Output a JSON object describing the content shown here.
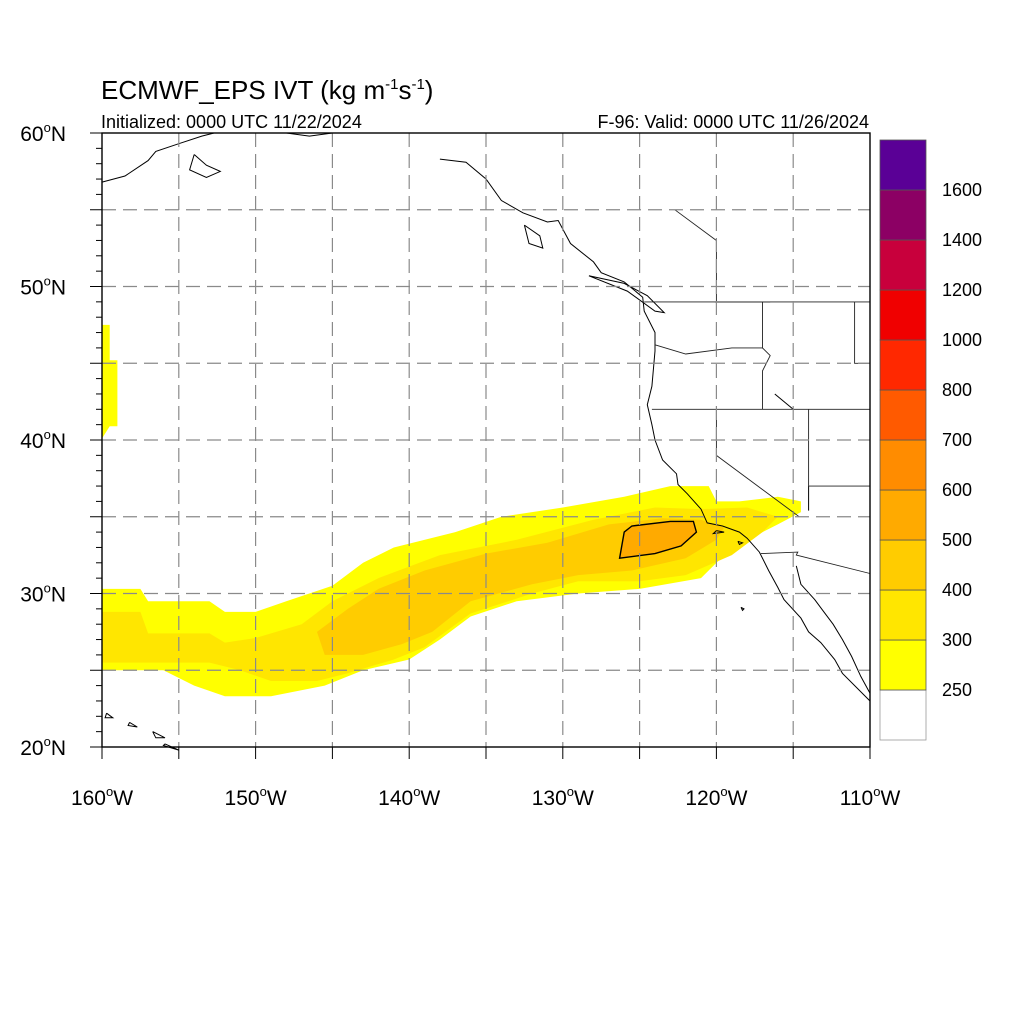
{
  "map": {
    "title_prefix": "ECMWF_EPS IVT (kg m",
    "title_sup1": "-1",
    "title_mid": "s",
    "title_sup2": "-1",
    "title_suffix": ")",
    "initialized": "Initialized: 0000 UTC 11/22/2024",
    "valid": "F-96: Valid: 0000 UTC 11/26/2024",
    "lon_range": [
      -160,
      -110
    ],
    "lat_range": [
      20,
      60
    ],
    "grid_dashed": true,
    "grid_lon_step": 5,
    "grid_lat_step": 5,
    "lat_ticks": [
      {
        "value": 60,
        "num": "60",
        "hemi": "N"
      },
      {
        "value": 50,
        "num": "50",
        "hemi": "N"
      },
      {
        "value": 40,
        "num": "40",
        "hemi": "N"
      },
      {
        "value": 30,
        "num": "30",
        "hemi": "N"
      },
      {
        "value": 20,
        "num": "20",
        "hemi": "N"
      }
    ],
    "lon_ticks": [
      {
        "value": -160,
        "num": "160",
        "hemi": "W"
      },
      {
        "value": -150,
        "num": "150",
        "hemi": "W"
      },
      {
        "value": -140,
        "num": "140",
        "hemi": "W"
      },
      {
        "value": -130,
        "num": "130",
        "hemi": "W"
      },
      {
        "value": -120,
        "num": "120",
        "hemi": "W"
      },
      {
        "value": -110,
        "num": "110",
        "hemi": "W"
      }
    ]
  },
  "colorbar": {
    "bins": [
      {
        "upper": null,
        "color": "#ffffff"
      },
      {
        "upper": 250,
        "color": "#ffff00"
      },
      {
        "upper": 300,
        "color": "#ffe600"
      },
      {
        "upper": 400,
        "color": "#ffcc00"
      },
      {
        "upper": 500,
        "color": "#ffaa00"
      },
      {
        "upper": 600,
        "color": "#ff8c00"
      },
      {
        "upper": 700,
        "color": "#ff5a00"
      },
      {
        "upper": 800,
        "color": "#ff2800"
      },
      {
        "upper": 1000,
        "color": "#f00000"
      },
      {
        "upper": 1200,
        "color": "#c8003c"
      },
      {
        "upper": 1400,
        "color": "#8c0064"
      },
      {
        "upper": 1600,
        "color": "#5a0096"
      }
    ],
    "labels": [
      "250",
      "300",
      "400",
      "500",
      "600",
      "700",
      "800",
      "1000",
      "1200",
      "1400",
      "1600"
    ]
  },
  "chart_data": {
    "type": "heatmap",
    "variable": "IVT",
    "units": "kg m-1 s-1",
    "filled_regions": [
      {
        "level_min": 250,
        "color": "#ffff00",
        "polygon_lonlat": [
          [
            -160,
            30.3
          ],
          [
            -157.5,
            30.3
          ],
          [
            -157,
            29.5
          ],
          [
            -153,
            29.5
          ],
          [
            -152,
            28.8
          ],
          [
            -150,
            28.8
          ],
          [
            -148,
            29.5
          ],
          [
            -145,
            30.5
          ],
          [
            -143,
            32
          ],
          [
            -141,
            33
          ],
          [
            -137,
            34
          ],
          [
            -134,
            35
          ],
          [
            -130,
            35.6
          ],
          [
            -126,
            36.3
          ],
          [
            -123,
            37
          ],
          [
            -120.5,
            37
          ],
          [
            -120,
            36
          ],
          [
            -118.5,
            36
          ],
          [
            -116,
            36.3
          ],
          [
            -114.5,
            36
          ],
          [
            -114.5,
            35.3
          ],
          [
            -116,
            34.5
          ],
          [
            -119,
            33
          ],
          [
            -121,
            31
          ],
          [
            -125,
            30.3
          ],
          [
            -129,
            30
          ],
          [
            -133,
            29.5
          ],
          [
            -136,
            28.5
          ],
          [
            -138,
            27
          ],
          [
            -140,
            25.7
          ],
          [
            -143,
            25
          ],
          [
            -145.5,
            24
          ],
          [
            -149,
            23.3
          ],
          [
            -152,
            23.3
          ],
          [
            -154,
            24
          ],
          [
            -156,
            25
          ],
          [
            -160,
            25
          ]
        ]
      },
      {
        "level_min": 250,
        "color": "#ffff00",
        "polygon_lonlat": [
          [
            -160,
            47.5
          ],
          [
            -159.5,
            47.5
          ],
          [
            -159.5,
            45.2
          ],
          [
            -159,
            45.2
          ],
          [
            -159,
            40.9
          ],
          [
            -159.5,
            40.9
          ],
          [
            -160,
            40.1
          ]
        ]
      },
      {
        "level_min": 300,
        "color": "#ffe600",
        "polygon_lonlat": [
          [
            -160,
            28.8
          ],
          [
            -157.5,
            28.8
          ],
          [
            -157,
            27.4
          ],
          [
            -153,
            27.4
          ],
          [
            -152,
            26.8
          ],
          [
            -150,
            27.1
          ],
          [
            -147,
            28
          ],
          [
            -145,
            29.5
          ],
          [
            -142,
            31
          ],
          [
            -138,
            32.5
          ],
          [
            -133,
            33.5
          ],
          [
            -128,
            34.8
          ],
          [
            -124,
            35.6
          ],
          [
            -121,
            35.5
          ],
          [
            -118,
            35.6
          ],
          [
            -116,
            35
          ],
          [
            -117,
            34
          ],
          [
            -119,
            32.5
          ],
          [
            -122,
            31.2
          ],
          [
            -125,
            30.8
          ],
          [
            -129,
            30.8
          ],
          [
            -132,
            30
          ],
          [
            -136,
            28.7
          ],
          [
            -139,
            26.5
          ],
          [
            -141,
            25.7
          ],
          [
            -144,
            24.8
          ],
          [
            -146,
            24.3
          ],
          [
            -149,
            24.3
          ],
          [
            -151,
            25
          ],
          [
            -153,
            25.5
          ],
          [
            -157,
            25.5
          ],
          [
            -160,
            25.5
          ]
        ]
      },
      {
        "level_min": 400,
        "color": "#ffcc00",
        "polygon_lonlat": [
          [
            -146,
            27.5
          ],
          [
            -144,
            29
          ],
          [
            -142,
            30.3
          ],
          [
            -139,
            31.5
          ],
          [
            -135,
            32.6
          ],
          [
            -131,
            33.3
          ],
          [
            -127,
            34.5
          ],
          [
            -123.5,
            34.9
          ],
          [
            -121,
            34.8
          ],
          [
            -119.5,
            34.3
          ],
          [
            -120,
            33.5
          ],
          [
            -122,
            32.3
          ],
          [
            -125.5,
            31.5
          ],
          [
            -129,
            31.2
          ],
          [
            -132,
            30.6
          ],
          [
            -136,
            29.5
          ],
          [
            -138.5,
            27.5
          ],
          [
            -140.5,
            26.7
          ],
          [
            -143,
            26
          ],
          [
            -145.5,
            26
          ]
        ]
      },
      {
        "level_min": 500,
        "color": "#ffaa00",
        "polygon_lonlat": [
          [
            -126,
            34
          ],
          [
            -125.5,
            34.4
          ],
          [
            -123,
            34.7
          ],
          [
            -121.5,
            34.7
          ],
          [
            -121.3,
            34
          ],
          [
            -122.3,
            33.1
          ],
          [
            -124,
            32.6
          ],
          [
            -126.3,
            32.3
          ]
        ]
      }
    ],
    "contours": [
      {
        "level": 500,
        "color": "#000000",
        "polygon_lonlat": [
          [
            -126,
            34
          ],
          [
            -125.5,
            34.4
          ],
          [
            -123,
            34.7
          ],
          [
            -121.5,
            34.7
          ],
          [
            -121.3,
            34
          ],
          [
            -122.3,
            33.1
          ],
          [
            -124,
            32.6
          ],
          [
            -126.3,
            32.3
          ]
        ]
      }
    ],
    "coastlines_lonlat": [
      [
        [
          -160,
          56.8
        ],
        [
          -158.5,
          57.2
        ],
        [
          -157,
          58.2
        ],
        [
          -156.5,
          58.8
        ],
        [
          -155,
          59.3
        ],
        [
          -153.5,
          59.8
        ],
        [
          -152.7,
          60
        ]
      ],
      [
        [
          -154,
          58.6
        ],
        [
          -153.2,
          57.9
        ],
        [
          -152.3,
          57.5
        ],
        [
          -153.2,
          57.1
        ],
        [
          -154.3,
          57.6
        ],
        [
          -154,
          58.6
        ]
      ],
      [
        [
          -148,
          60
        ],
        [
          -146.5,
          59.8
        ],
        [
          -145,
          60
        ],
        [
          -143.5,
          60
        ]
      ],
      [
        [
          -138,
          58.3
        ],
        [
          -136.3,
          58.1
        ],
        [
          -135,
          57
        ],
        [
          -134,
          55.6
        ],
        [
          -132.6,
          54.8
        ],
        [
          -131,
          54.2
        ],
        [
          -130.3,
          54.3
        ],
        [
          -129.5,
          52.8
        ],
        [
          -128,
          51.6
        ],
        [
          -127.5,
          50.9
        ],
        [
          -126,
          50.3
        ],
        [
          -124.8,
          49.3
        ],
        [
          -124.7,
          48.4
        ],
        [
          -124,
          47
        ],
        [
          -124,
          45.8
        ],
        [
          -124.2,
          43.5
        ],
        [
          -124.5,
          42.3
        ],
        [
          -124.2,
          41
        ],
        [
          -124,
          40
        ],
        [
          -123.5,
          38.7
        ],
        [
          -122.6,
          37.8
        ],
        [
          -122.5,
          37.1
        ],
        [
          -121.9,
          36.5
        ],
        [
          -121,
          35.5
        ],
        [
          -120.6,
          34.6
        ],
        [
          -119.6,
          34.4
        ],
        [
          -118.5,
          34
        ],
        [
          -118,
          33.6
        ],
        [
          -117.2,
          32.7
        ],
        [
          -116.6,
          31.5
        ],
        [
          -116,
          30.4
        ],
        [
          -115.6,
          29.6
        ],
        [
          -114.5,
          28.4
        ],
        [
          -114,
          27.5
        ],
        [
          -113.2,
          26.8
        ],
        [
          -112.3,
          25.7
        ],
        [
          -111.8,
          24.8
        ],
        [
          -110,
          23
        ]
      ],
      [
        [
          -114.8,
          31.8
        ],
        [
          -114.5,
          30.6
        ],
        [
          -113.6,
          29.6
        ],
        [
          -113,
          28.8
        ],
        [
          -112.4,
          28
        ],
        [
          -111.8,
          27
        ],
        [
          -111.2,
          25.9
        ],
        [
          -110.6,
          24.6
        ],
        [
          -110,
          23.5
        ]
      ],
      [
        [
          -128.3,
          50.7
        ],
        [
          -125.8,
          49.7
        ],
        [
          -124,
          48.4
        ],
        [
          -123.4,
          48.3
        ],
        [
          -124.5,
          49.4
        ],
        [
          -126,
          50.2
        ],
        [
          -128.3,
          50.7
        ]
      ],
      [
        [
          -132.5,
          54
        ],
        [
          -131.5,
          53.3
        ],
        [
          -131.3,
          52.5
        ],
        [
          -132.2,
          52.8
        ],
        [
          -132.5,
          54
        ]
      ],
      [
        [
          -114,
          37
        ],
        [
          -114,
          35.4
        ]
      ],
      [
        [
          -115,
          42
        ],
        [
          -116.2,
          43
        ]
      ]
    ],
    "state_borders_lonlat": [
      [
        [
          -124.7,
          49
        ],
        [
          -110,
          49
        ]
      ],
      [
        [
          -124,
          46.2
        ],
        [
          -122,
          45.6
        ],
        [
          -119,
          46
        ],
        [
          -117,
          46
        ]
      ],
      [
        [
          -117,
          49
        ],
        [
          -117,
          46
        ],
        [
          -116.5,
          45.5
        ],
        [
          -117,
          44.5
        ],
        [
          -117,
          42
        ]
      ],
      [
        [
          -124.2,
          42
        ],
        [
          -110,
          42
        ]
      ],
      [
        [
          -120,
          42
        ],
        [
          -120,
          39
        ],
        [
          -114.6,
          35
        ]
      ],
      [
        [
          -114,
          42
        ],
        [
          -114,
          37
        ],
        [
          -110,
          37
        ]
      ],
      [
        [
          -111,
          49
        ],
        [
          -111,
          45
        ],
        [
          -110,
          45
        ]
      ],
      [
        [
          -117.1,
          32.6
        ],
        [
          -114.7,
          32.7
        ],
        [
          -114.8,
          32.5
        ],
        [
          -110,
          31.3
        ]
      ],
      [
        [
          -120.1,
          49
        ],
        [
          -116.5,
          49
        ]
      ],
      [
        [
          -122.7,
          55
        ],
        [
          -120,
          53
        ],
        [
          -120,
          49
        ]
      ]
    ],
    "islands_lonlat": [
      [
        [
          -155.9,
          20.2
        ],
        [
          -155,
          19.8
        ],
        [
          -156,
          20.1
        ],
        [
          -155.9,
          20.2
        ]
      ],
      [
        [
          -156.7,
          21
        ],
        [
          -155.9,
          20.6
        ],
        [
          -156.5,
          20.6
        ],
        [
          -156.7,
          21
        ]
      ],
      [
        [
          -158.2,
          21.6
        ],
        [
          -157.7,
          21.3
        ],
        [
          -158.3,
          21.4
        ],
        [
          -158.2,
          21.6
        ]
      ],
      [
        [
          -159.7,
          22.2
        ],
        [
          -159.3,
          21.9
        ],
        [
          -159.8,
          21.9
        ],
        [
          -159.7,
          22.2
        ]
      ],
      [
        [
          -120,
          34.1
        ],
        [
          -119.5,
          34
        ],
        [
          -120.2,
          33.9
        ],
        [
          -120,
          34.1
        ]
      ],
      [
        [
          -118.6,
          33.4
        ],
        [
          -118.3,
          33.3
        ],
        [
          -118.5,
          33.2
        ],
        [
          -118.6,
          33.4
        ]
      ],
      [
        [
          -118.4,
          29.1
        ],
        [
          -118.2,
          29
        ],
        [
          -118.3,
          28.9
        ],
        [
          -118.4,
          29.1
        ]
      ]
    ]
  }
}
